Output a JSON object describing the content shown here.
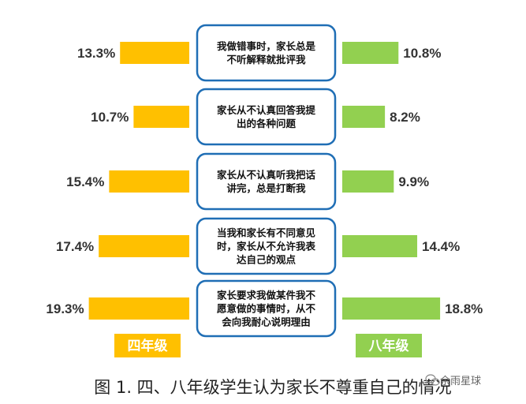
{
  "chart_data": {
    "type": "bar",
    "orientation": "horizontal-butterfly",
    "categories": [
      [
        "我做错事时，家长总是",
        "不听解释就批评我"
      ],
      [
        "家长从不认真回答我提",
        "出的各种问题"
      ],
      [
        "家长从不认真听我把话",
        "讲完，总是打断我"
      ],
      [
        "当我和家长有不同意见",
        "时，家长从不允许我表",
        "达自己的观点"
      ],
      [
        "家长要求我做某件我不",
        "愿意做的事情时，从不",
        "会向我耐心说明理由"
      ]
    ],
    "series": [
      {
        "name": "四年级",
        "color": "#FFC000",
        "side": "left",
        "values": [
          13.3,
          10.7,
          15.4,
          17.4,
          19.3
        ],
        "labels": [
          "13.3%",
          "10.7%",
          "15.4%",
          "17.4%",
          "19.3%"
        ]
      },
      {
        "name": "八年级",
        "color": "#92D050",
        "side": "right",
        "values": [
          10.8,
          8.2,
          9.9,
          14.4,
          18.8
        ],
        "labels": [
          "10.8%",
          "8.2%",
          "9.9%",
          "14.4%",
          "18.8%"
        ]
      }
    ],
    "box_border_color": "#1F6EB5",
    "legend_placement": "bottom",
    "grid": false
  },
  "caption": "图 1. 四、八年级学生认为家长不尊重自己的情况",
  "watermark": "余雨星球"
}
